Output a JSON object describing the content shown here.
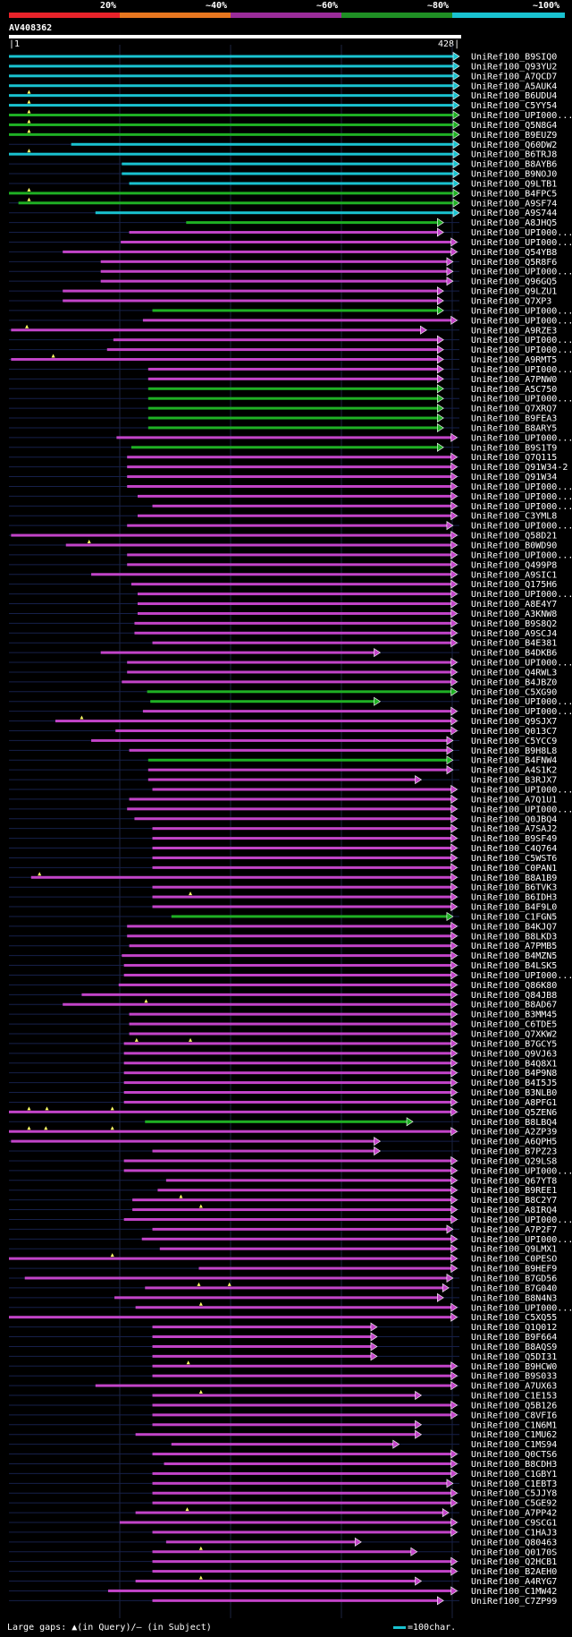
{
  "query": {
    "name": "AV408362",
    "start": "1",
    "end": "428"
  },
  "legend": [
    {
      "label": "20%",
      "color": "#e8232a"
    },
    {
      "label": "~40%",
      "color": "#e7761f"
    },
    {
      "label": "~60%",
      "color": "#9b2c9a"
    },
    {
      "label": "~80%",
      "color": "#1f8f24"
    },
    {
      "label": "~100%",
      "color": "#19c2d0"
    }
  ],
  "footer": {
    "left": "Large gaps: ▲(in Query)/— (in Subject)",
    "right": "=100char."
  },
  "hits": [
    {
      "name": "UniRef100_B9SIQ0",
      "s": 1,
      "e": 428,
      "c": "cyan"
    },
    {
      "name": "UniRef100_Q93YU2",
      "s": 1,
      "e": 428,
      "c": "cyan"
    },
    {
      "name": "UniRef100_A7QCD7",
      "s": 1,
      "e": 428,
      "c": "cyan"
    },
    {
      "name": "UniRef100_A5AUK4",
      "s": 1,
      "e": 428,
      "c": "cyan"
    },
    {
      "name": "UniRef100_B6UDU4",
      "s": 1,
      "e": 428,
      "c": "cyan",
      "g": [
        20
      ]
    },
    {
      "name": "UniRef100_C5YY54",
      "s": 1,
      "e": 428,
      "c": "cyan",
      "g": [
        20
      ]
    },
    {
      "name": "UniRef100_UPI000...",
      "s": 1,
      "e": 428,
      "c": "green",
      "g": [
        20
      ]
    },
    {
      "name": "UniRef100_Q5N8G4",
      "s": 1,
      "e": 428,
      "c": "green",
      "g": [
        20
      ]
    },
    {
      "name": "UniRef100_B9EUZ9",
      "s": 1,
      "e": 428,
      "c": "green",
      "g": [
        20
      ]
    },
    {
      "name": "UniRef100_Q60DW2",
      "s": 60,
      "e": 428,
      "c": "cyan"
    },
    {
      "name": "UniRef100_B6TRJ8",
      "s": 1,
      "e": 428,
      "c": "cyan",
      "g": [
        20
      ]
    },
    {
      "name": "UniRef100_B8AYB6",
      "s": 108,
      "e": 428,
      "c": "cyan"
    },
    {
      "name": "UniRef100_B9NOJ0",
      "s": 108,
      "e": 428,
      "c": "cyan"
    },
    {
      "name": "UniRef100_Q9LTB1",
      "s": 115,
      "e": 428,
      "c": "cyan"
    },
    {
      "name": "UniRef100_B4FPC5",
      "s": 1,
      "e": 428,
      "c": "green",
      "g": [
        20
      ]
    },
    {
      "name": "UniRef100_A9SF74",
      "s": 10,
      "e": 428,
      "c": "green",
      "g": [
        20
      ]
    },
    {
      "name": "UniRef100_A9S744",
      "s": 83,
      "e": 428,
      "c": "cyan"
    },
    {
      "name": "UniRef100_A8JHQ5",
      "s": 169,
      "e": 413,
      "c": "green"
    },
    {
      "name": "UniRef100_UPI000...",
      "s": 115,
      "e": 413,
      "c": "purple"
    },
    {
      "name": "UniRef100_UPI000...",
      "s": 107,
      "e": 426,
      "c": "purple"
    },
    {
      "name": "UniRef100_Q54YB8",
      "s": 52,
      "e": 426,
      "c": "purple"
    },
    {
      "name": "UniRef100_Q5R8F6",
      "s": 88,
      "e": 422,
      "c": "purple"
    },
    {
      "name": "UniRef100_UPI000...",
      "s": 88,
      "e": 422,
      "c": "purple"
    },
    {
      "name": "UniRef100_Q96GQ5",
      "s": 88,
      "e": 422,
      "c": "purple"
    },
    {
      "name": "UniRef100_Q9LZU1",
      "s": 52,
      "e": 413,
      "c": "purple"
    },
    {
      "name": "UniRef100_Q7XP3",
      "s": 52,
      "e": 413,
      "c": "purple"
    },
    {
      "name": "UniRef100_UPI000...",
      "s": 137,
      "e": 413,
      "c": "green"
    },
    {
      "name": "UniRef100_UPI000...",
      "s": 128,
      "e": 426,
      "c": "purple"
    },
    {
      "name": "UniRef100_A9RZE3",
      "s": 3,
      "e": 397,
      "c": "purple",
      "g": [
        18
      ]
    },
    {
      "name": "UniRef100_UPI000...",
      "s": 100,
      "e": 413,
      "c": "purple"
    },
    {
      "name": "UniRef100_UPI000...",
      "s": 94,
      "e": 413,
      "c": "purple"
    },
    {
      "name": "UniRef100_A9RMT5",
      "s": 3,
      "e": 413,
      "c": "purple",
      "g": [
        43
      ]
    },
    {
      "name": "UniRef100_UPI000...",
      "s": 133,
      "e": 413,
      "c": "purple"
    },
    {
      "name": "UniRef100_A7PNW0",
      "s": 133,
      "e": 413,
      "c": "purple"
    },
    {
      "name": "UniRef100_A5C750",
      "s": 133,
      "e": 413,
      "c": "green"
    },
    {
      "name": "UniRef100_UPI000...",
      "s": 133,
      "e": 413,
      "c": "green"
    },
    {
      "name": "UniRef100_Q7XRQ7",
      "s": 133,
      "e": 413,
      "c": "green"
    },
    {
      "name": "UniRef100_B9FEA3",
      "s": 133,
      "e": 413,
      "c": "green"
    },
    {
      "name": "UniRef100_B8ARY5",
      "s": 133,
      "e": 413,
      "c": "green"
    },
    {
      "name": "UniRef100_UPI000...",
      "s": 103,
      "e": 426,
      "c": "purple"
    },
    {
      "name": "UniRef100_B9S1T9",
      "s": 117,
      "e": 413,
      "c": "green"
    },
    {
      "name": "UniRef100_Q7Q115",
      "s": 113,
      "e": 426,
      "c": "purple"
    },
    {
      "name": "UniRef100_Q91W34-2",
      "s": 113,
      "e": 426,
      "c": "purple"
    },
    {
      "name": "UniRef100_Q91W34",
      "s": 113,
      "e": 426,
      "c": "purple"
    },
    {
      "name": "UniRef100_UPI000...",
      "s": 113,
      "e": 426,
      "c": "purple"
    },
    {
      "name": "UniRef100_UPI000...",
      "s": 123,
      "e": 426,
      "c": "purple"
    },
    {
      "name": "UniRef100_UPI000...",
      "s": 137,
      "e": 426,
      "c": "purple"
    },
    {
      "name": "UniRef100_C3YML8",
      "s": 123,
      "e": 426,
      "c": "purple"
    },
    {
      "name": "UniRef100_UPI000...",
      "s": 113,
      "e": 422,
      "c": "purple"
    },
    {
      "name": "UniRef100_Q58D21",
      "s": 3,
      "e": 426,
      "c": "purple"
    },
    {
      "name": "UniRef100_B0WD90",
      "s": 55,
      "e": 426,
      "c": "purple",
      "g": [
        77
      ]
    },
    {
      "name": "UniRef100_UPI000...",
      "s": 113,
      "e": 426,
      "c": "purple"
    },
    {
      "name": "UniRef100_Q499P8",
      "s": 113,
      "e": 426,
      "c": "purple"
    },
    {
      "name": "UniRef100_A9SIC1",
      "s": 79,
      "e": 426,
      "c": "purple"
    },
    {
      "name": "UniRef100_Q175H6",
      "s": 117,
      "e": 426,
      "c": "purple"
    },
    {
      "name": "UniRef100_UPI000...",
      "s": 123,
      "e": 426,
      "c": "purple"
    },
    {
      "name": "UniRef100_A8E4Y7",
      "s": 123,
      "e": 426,
      "c": "purple"
    },
    {
      "name": "UniRef100_A3KNW8",
      "s": 123,
      "e": 426,
      "c": "purple"
    },
    {
      "name": "UniRef100_B9S8Q2",
      "s": 120,
      "e": 426,
      "c": "purple"
    },
    {
      "name": "UniRef100_A9SCJ4",
      "s": 120,
      "e": 426,
      "c": "purple"
    },
    {
      "name": "UniRef100_B4E381",
      "s": 137,
      "e": 426,
      "c": "purple"
    },
    {
      "name": "UniRef100_B4DKB6",
      "s": 88,
      "e": 353,
      "c": "purple"
    },
    {
      "name": "UniRef100_UPI000...",
      "s": 113,
      "e": 426,
      "c": "purple"
    },
    {
      "name": "UniRef100_Q4RWL3",
      "s": 113,
      "e": 426,
      "c": "purple"
    },
    {
      "name": "UniRef100_B4JBZ0",
      "s": 108,
      "e": 426,
      "c": "purple"
    },
    {
      "name": "UniRef100_C5XG90",
      "s": 132,
      "e": 426,
      "c": "green"
    },
    {
      "name": "UniRef100_UPI000...",
      "s": 135,
      "e": 353,
      "c": "green"
    },
    {
      "name": "UniRef100_UPI000...",
      "s": 128,
      "e": 426,
      "c": "purple"
    },
    {
      "name": "UniRef100_Q9SJX7",
      "s": 45,
      "e": 426,
      "c": "purple",
      "g": [
        70
      ]
    },
    {
      "name": "UniRef100_Q013C7",
      "s": 102,
      "e": 426,
      "c": "purple"
    },
    {
      "name": "UniRef100_C5YCC9",
      "s": 79,
      "e": 422,
      "c": "purple"
    },
    {
      "name": "UniRef100_B9H8L8",
      "s": 115,
      "e": 422,
      "c": "purple"
    },
    {
      "name": "UniRef100_B4FNW4",
      "s": 133,
      "e": 422,
      "c": "green"
    },
    {
      "name": "UniRef100_A4S1K2",
      "s": 133,
      "e": 422,
      "c": "purple"
    },
    {
      "name": "UniRef100_B3RJX7",
      "s": 133,
      "e": 392,
      "c": "purple"
    },
    {
      "name": "UniRef100_UPI000...",
      "s": 137,
      "e": 426,
      "c": "purple"
    },
    {
      "name": "UniRef100_A7Q1U1",
      "s": 115,
      "e": 426,
      "c": "purple"
    },
    {
      "name": "UniRef100_UPI000...",
      "s": 113,
      "e": 426,
      "c": "purple"
    },
    {
      "name": "UniRef100_Q0JBQ4",
      "s": 120,
      "e": 426,
      "c": "purple"
    },
    {
      "name": "UniRef100_A7SAJ2",
      "s": 137,
      "e": 426,
      "c": "purple"
    },
    {
      "name": "UniRef100_B9SF49",
      "s": 137,
      "e": 426,
      "c": "purple"
    },
    {
      "name": "UniRef100_C4Q764",
      "s": 137,
      "e": 426,
      "c": "purple"
    },
    {
      "name": "UniRef100_C5WST6",
      "s": 137,
      "e": 426,
      "c": "purple"
    },
    {
      "name": "UniRef100_C0PAN1",
      "s": 137,
      "e": 426,
      "c": "purple"
    },
    {
      "name": "UniRef100_B8A1B9",
      "s": 22,
      "e": 426,
      "c": "purple",
      "g": [
        30
      ]
    },
    {
      "name": "UniRef100_B6TVK3",
      "s": 137,
      "e": 426,
      "c": "purple"
    },
    {
      "name": "UniRef100_B6IDH3",
      "s": 137,
      "e": 426,
      "c": "purple",
      "g": [
        173
      ]
    },
    {
      "name": "UniRef100_B4F9L0",
      "s": 137,
      "e": 426,
      "c": "purple"
    },
    {
      "name": "UniRef100_C1FGN5",
      "s": 155,
      "e": 422,
      "c": "green"
    },
    {
      "name": "UniRef100_B4KJQ7",
      "s": 113,
      "e": 426,
      "c": "purple"
    },
    {
      "name": "UniRef100_B8LKD3",
      "s": 113,
      "e": 426,
      "c": "purple"
    },
    {
      "name": "UniRef100_A7PMB5",
      "s": 115,
      "e": 426,
      "c": "purple"
    },
    {
      "name": "UniRef100_B4MZN5",
      "s": 108,
      "e": 426,
      "c": "purple"
    },
    {
      "name": "UniRef100_B4LSK5",
      "s": 110,
      "e": 426,
      "c": "purple"
    },
    {
      "name": "UniRef100_UPI000...",
      "s": 110,
      "e": 426,
      "c": "purple"
    },
    {
      "name": "UniRef100_Q86K80",
      "s": 105,
      "e": 426,
      "c": "purple"
    },
    {
      "name": "UniRef100_Q84JB8",
      "s": 70,
      "e": 426,
      "c": "purple"
    },
    {
      "name": "UniRef100_B8AD67",
      "s": 52,
      "e": 426,
      "c": "purple",
      "g": [
        131
      ]
    },
    {
      "name": "UniRef100_B3MM45",
      "s": 115,
      "e": 426,
      "c": "purple"
    },
    {
      "name": "UniRef100_C6TDE5",
      "s": 115,
      "e": 426,
      "c": "purple"
    },
    {
      "name": "UniRef100_Q7XKW2",
      "s": 115,
      "e": 426,
      "c": "purple"
    },
    {
      "name": "UniRef100_B7GCY5",
      "s": 110,
      "e": 426,
      "c": "purple",
      "g": [
        122,
        173
      ]
    },
    {
      "name": "UniRef100_Q9VJ63",
      "s": 110,
      "e": 426,
      "c": "purple"
    },
    {
      "name": "UniRef100_B4Q8X1",
      "s": 110,
      "e": 426,
      "c": "purple"
    },
    {
      "name": "UniRef100_B4P9N8",
      "s": 110,
      "e": 426,
      "c": "purple"
    },
    {
      "name": "UniRef100_B4I5J5",
      "s": 110,
      "e": 426,
      "c": "purple"
    },
    {
      "name": "UniRef100_B3NLB0",
      "s": 110,
      "e": 426,
      "c": "purple"
    },
    {
      "name": "UniRef100_A8PFG1",
      "s": 110,
      "e": 426,
      "c": "purple"
    },
    {
      "name": "UniRef100_Q5ZEN6",
      "s": 1,
      "e": 426,
      "c": "purple",
      "g": [
        20,
        37,
        99
      ]
    },
    {
      "name": "UniRef100_B8LBQ4",
      "s": 130,
      "e": 384,
      "c": "green"
    },
    {
      "name": "UniRef100_A2ZP39",
      "s": 1,
      "e": 426,
      "c": "purple",
      "g": [
        20,
        36,
        99
      ]
    },
    {
      "name": "UniRef100_A6QPH5",
      "s": 3,
      "e": 353,
      "c": "purple"
    },
    {
      "name": "UniRef100_B7PZ23",
      "s": 137,
      "e": 353,
      "c": "purple"
    },
    {
      "name": "UniRef100_Q29LS8",
      "s": 110,
      "e": 426,
      "c": "purple"
    },
    {
      "name": "UniRef100_UPI000...",
      "s": 110,
      "e": 426,
      "c": "purple"
    },
    {
      "name": "UniRef100_Q67YT8",
      "s": 150,
      "e": 426,
      "c": "purple"
    },
    {
      "name": "UniRef100_B9REE1",
      "s": 142,
      "e": 426,
      "c": "purple"
    },
    {
      "name": "UniRef100_B8C2Y7",
      "s": 118,
      "e": 426,
      "c": "purple",
      "g": [
        164
      ]
    },
    {
      "name": "UniRef100_A8IRQ4",
      "s": 118,
      "e": 426,
      "c": "purple",
      "g": [
        183
      ]
    },
    {
      "name": "UniRef100_UPI000...",
      "s": 110,
      "e": 426,
      "c": "purple"
    },
    {
      "name": "UniRef100_A7P2F7",
      "s": 137,
      "e": 422,
      "c": "purple"
    },
    {
      "name": "UniRef100_UPI000...",
      "s": 127,
      "e": 426,
      "c": "purple"
    },
    {
      "name": "UniRef100_Q9LMX1",
      "s": 144,
      "e": 426,
      "c": "purple"
    },
    {
      "name": "UniRef100_C0PESO",
      "s": 1,
      "e": 426,
      "c": "purple",
      "g": [
        99
      ]
    },
    {
      "name": "UniRef100_B9HEF9",
      "s": 181,
      "e": 426,
      "c": "purple"
    },
    {
      "name": "UniRef100_B7GD56",
      "s": 16,
      "e": 422,
      "c": "purple"
    },
    {
      "name": "UniRef100_B7G040",
      "s": 130,
      "e": 418,
      "c": "purple",
      "g": [
        181,
        210
      ]
    },
    {
      "name": "UniRef100_B8N4N3",
      "s": 101,
      "e": 413,
      "c": "purple"
    },
    {
      "name": "UniRef100_UPI000...",
      "s": 121,
      "e": 426,
      "c": "purple",
      "g": [
        183
      ]
    },
    {
      "name": "UniRef100_C5XQ55",
      "s": 1,
      "e": 426,
      "c": "purple"
    },
    {
      "name": "UniRef100_Q1Q012",
      "s": 137,
      "e": 350,
      "c": "purple"
    },
    {
      "name": "UniRef100_B9F664",
      "s": 137,
      "e": 350,
      "c": "purple"
    },
    {
      "name": "UniRef100_B8AQS9",
      "s": 137,
      "e": 350,
      "c": "purple"
    },
    {
      "name": "UniRef100_Q5DI31",
      "s": 137,
      "e": 350,
      "c": "purple"
    },
    {
      "name": "UniRef100_B9HCW0",
      "s": 137,
      "e": 426,
      "c": "purple",
      "g": [
        171
      ]
    },
    {
      "name": "UniRef100_B9S033",
      "s": 137,
      "e": 426,
      "c": "purple"
    },
    {
      "name": "UniRef100_A7UX63",
      "s": 83,
      "e": 426,
      "c": "purple"
    },
    {
      "name": "UniRef100_C1E153",
      "s": 137,
      "e": 392,
      "c": "purple",
      "g": [
        183
      ]
    },
    {
      "name": "UniRef100_Q5B126",
      "s": 137,
      "e": 426,
      "c": "purple"
    },
    {
      "name": "UniRef100_C8VFI6",
      "s": 137,
      "e": 426,
      "c": "purple"
    },
    {
      "name": "UniRef100_C1N6M1",
      "s": 137,
      "e": 392,
      "c": "purple"
    },
    {
      "name": "UniRef100_C1MU62",
      "s": 121,
      "e": 392,
      "c": "purple"
    },
    {
      "name": "UniRef100_C1MS94",
      "s": 155,
      "e": 371,
      "c": "purple"
    },
    {
      "name": "UniRef100_Q0CTS6",
      "s": 137,
      "e": 426,
      "c": "purple"
    },
    {
      "name": "UniRef100_B8CDH3",
      "s": 148,
      "e": 426,
      "c": "purple"
    },
    {
      "name": "UniRef100_C1GBY1",
      "s": 137,
      "e": 426,
      "c": "purple"
    },
    {
      "name": "UniRef100_C1EBT3",
      "s": 137,
      "e": 422,
      "c": "purple"
    },
    {
      "name": "UniRef100_C5JJY8",
      "s": 137,
      "e": 426,
      "c": "purple"
    },
    {
      "name": "UniRef100_C5GE92",
      "s": 137,
      "e": 426,
      "c": "purple"
    },
    {
      "name": "UniRef100_A7PP42",
      "s": 121,
      "e": 418,
      "c": "purple",
      "g": [
        170
      ]
    },
    {
      "name": "UniRef100_C9SCG1",
      "s": 106,
      "e": 426,
      "c": "purple"
    },
    {
      "name": "UniRef100_C1HAJ3",
      "s": 137,
      "e": 426,
      "c": "purple"
    },
    {
      "name": "UniRef100_Q80463",
      "s": 150,
      "e": 335,
      "c": "purple"
    },
    {
      "name": "UniRef100_Q0170S",
      "s": 137,
      "e": 388,
      "c": "purple",
      "g": [
        183
      ]
    },
    {
      "name": "UniRef100_Q2HCB1",
      "s": 137,
      "e": 426,
      "c": "purple"
    },
    {
      "name": "UniRef100_B2AEH0",
      "s": 137,
      "e": 426,
      "c": "purple"
    },
    {
      "name": "UniRef100_A4RYG7",
      "s": 121,
      "e": 392,
      "c": "purple",
      "g": [
        183
      ]
    },
    {
      "name": "UniRef100_C1MW42",
      "s": 95,
      "e": 426,
      "c": "purple"
    },
    {
      "name": "UniRef100_C7ZP99",
      "s": 137,
      "e": 413,
      "c": "purple"
    }
  ]
}
